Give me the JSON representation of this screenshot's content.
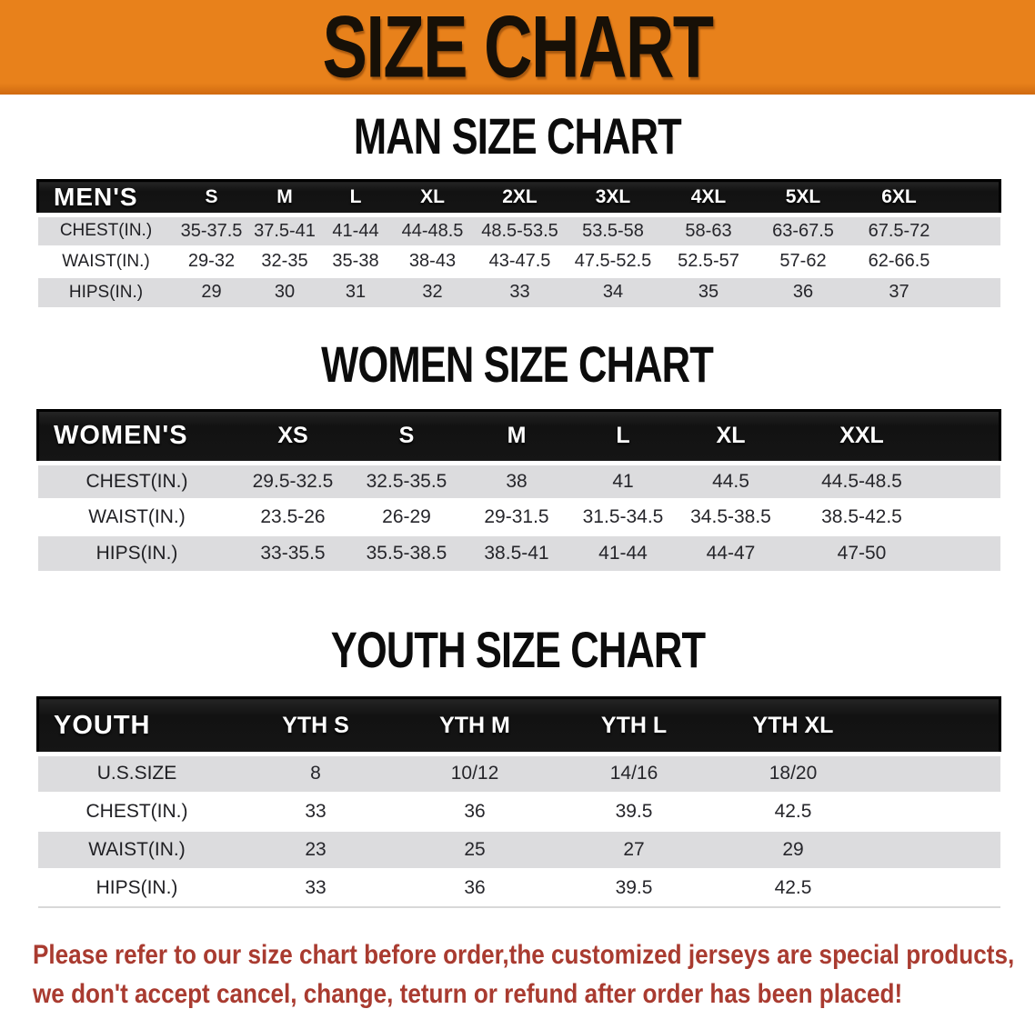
{
  "banner": {
    "title": "SIZE CHART"
  },
  "colors": {
    "banner_bg": "#E8811B",
    "header_bar": "#161616",
    "row_alt": "#DCDCDE",
    "footer_red": "#A93B30"
  },
  "sections": [
    {
      "heading": "MAN SIZE CHART",
      "group_label": "MEN'S",
      "sizes": [
        "S",
        "M",
        "L",
        "XL",
        "2XL",
        "3XL",
        "4XL",
        "5XL",
        "6XL"
      ],
      "rows": [
        {
          "label": "CHEST(IN.)",
          "values": [
            "35-37.5",
            "37.5-41",
            "41-44",
            "44-48.5",
            "48.5-53.5",
            "53.5-58",
            "58-63",
            "63-67.5",
            "67.5-72"
          ]
        },
        {
          "label": "WAIST(IN.)",
          "values": [
            "29-32",
            "32-35",
            "35-38",
            "38-43",
            "43-47.5",
            "47.5-52.5",
            "52.5-57",
            "57-62",
            "62-66.5"
          ]
        },
        {
          "label": "HIPS(IN.)",
          "values": [
            "29",
            "30",
            "31",
            "32",
            "33",
            "34",
            "35",
            "36",
            "37"
          ]
        }
      ]
    },
    {
      "heading": "WOMEN SIZE CHART",
      "group_label": "WOMEN'S",
      "sizes": [
        "XS",
        "S",
        "M",
        "L",
        "XL",
        "XXL"
      ],
      "rows": [
        {
          "label": "CHEST(IN.)",
          "values": [
            "29.5-32.5",
            "32.5-35.5",
            "38",
            "41",
            "44.5",
            "44.5-48.5"
          ]
        },
        {
          "label": "WAIST(IN.)",
          "values": [
            "23.5-26",
            "26-29",
            "29-31.5",
            "31.5-34.5",
            "34.5-38.5",
            "38.5-42.5"
          ]
        },
        {
          "label": "HIPS(IN.)",
          "values": [
            "33-35.5",
            "35.5-38.5",
            "38.5-41",
            "41-44",
            "44-47",
            "47-50"
          ]
        }
      ]
    },
    {
      "heading": "YOUTH SIZE CHART",
      "group_label": "YOUTH",
      "sizes": [
        "YTH S",
        "YTH M",
        "YTH L",
        "YTH XL"
      ],
      "rows": [
        {
          "label": "U.S.SIZE",
          "values": [
            "8",
            "10/12",
            "14/16",
            "18/20"
          ]
        },
        {
          "label": "CHEST(IN.)",
          "values": [
            "33",
            "36",
            "39.5",
            "42.5"
          ]
        },
        {
          "label": "WAIST(IN.)",
          "values": [
            "23",
            "25",
            "27",
            "29"
          ]
        },
        {
          "label": "HIPS(IN.)",
          "values": [
            "33",
            "36",
            "39.5",
            "42.5"
          ]
        }
      ]
    }
  ],
  "footer": {
    "line1": "Please refer to our size chart before order,the customized jerseys are special products,",
    "line2": "we don't accept cancel, change, teturn or refund after order has been placed!"
  }
}
